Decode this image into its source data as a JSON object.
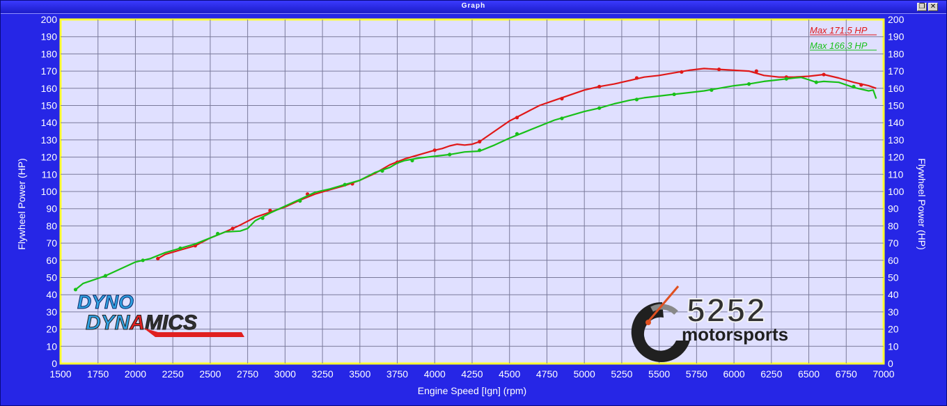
{
  "window": {
    "title": "Graph",
    "restore_glyph": "❐",
    "close_glyph": "✕"
  },
  "chart_data": {
    "type": "line",
    "xlabel": "Engine Speed [Ign] (rpm)",
    "ylabel": "Flywheel Power (HP)",
    "y2label": "Flywheel Power (HP)",
    "xlim": [
      1500,
      7000
    ],
    "ylim": [
      0,
      200
    ],
    "xticks": [
      1500,
      1750,
      2000,
      2250,
      2500,
      2750,
      3000,
      3250,
      3500,
      3750,
      4000,
      4250,
      4500,
      4750,
      5000,
      5250,
      5500,
      5750,
      6000,
      6250,
      6500,
      6750,
      7000
    ],
    "yticks": [
      0,
      10,
      20,
      30,
      40,
      50,
      60,
      70,
      80,
      90,
      100,
      110,
      120,
      130,
      140,
      150,
      160,
      170,
      180,
      190,
      200
    ],
    "grid": true,
    "legend_position": "top-right",
    "series": [
      {
        "name": "Max 171.5 HP",
        "color": "#e01818",
        "points": [
          [
            2150,
            61
          ],
          [
            2200,
            63.5
          ],
          [
            2300,
            66
          ],
          [
            2400,
            68.5
          ],
          [
            2500,
            73
          ],
          [
            2600,
            76.5
          ],
          [
            2700,
            80.5
          ],
          [
            2800,
            85
          ],
          [
            2900,
            88
          ],
          [
            3000,
            91
          ],
          [
            3100,
            95
          ],
          [
            3200,
            98.5
          ],
          [
            3300,
            101
          ],
          [
            3400,
            103.5
          ],
          [
            3500,
            106.5
          ],
          [
            3600,
            110.5
          ],
          [
            3700,
            115.5
          ],
          [
            3800,
            119
          ],
          [
            3900,
            121.5
          ],
          [
            4000,
            124
          ],
          [
            4050,
            125
          ],
          [
            4100,
            126.5
          ],
          [
            4150,
            127.5
          ],
          [
            4200,
            127
          ],
          [
            4250,
            127.5
          ],
          [
            4300,
            129
          ],
          [
            4400,
            135
          ],
          [
            4500,
            141
          ],
          [
            4600,
            145.5
          ],
          [
            4700,
            150
          ],
          [
            4800,
            153
          ],
          [
            4900,
            156
          ],
          [
            5000,
            159
          ],
          [
            5100,
            161
          ],
          [
            5200,
            162.5
          ],
          [
            5300,
            164.5
          ],
          [
            5400,
            166.5
          ],
          [
            5500,
            167.5
          ],
          [
            5600,
            169
          ],
          [
            5700,
            170.5
          ],
          [
            5800,
            171.5
          ],
          [
            5900,
            171
          ],
          [
            6000,
            170.5
          ],
          [
            6100,
            170
          ],
          [
            6200,
            167.5
          ],
          [
            6300,
            166.5
          ],
          [
            6400,
            166.5
          ],
          [
            6500,
            167
          ],
          [
            6600,
            168
          ],
          [
            6700,
            166
          ],
          [
            6800,
            163.5
          ],
          [
            6900,
            161.5
          ],
          [
            6950,
            160
          ]
        ],
        "markers": [
          [
            2150,
            61
          ],
          [
            2400,
            68.5
          ],
          [
            2650,
            78.5
          ],
          [
            2900,
            89
          ],
          [
            3150,
            98.5
          ],
          [
            3450,
            104.5
          ],
          [
            3750,
            117
          ],
          [
            4000,
            124
          ],
          [
            4300,
            129
          ],
          [
            4550,
            143
          ],
          [
            4850,
            154
          ],
          [
            5100,
            161
          ],
          [
            5350,
            166
          ],
          [
            5650,
            169.5
          ],
          [
            5900,
            171
          ],
          [
            6150,
            170
          ],
          [
            6350,
            166.5
          ],
          [
            6600,
            168
          ],
          [
            6850,
            162
          ]
        ]
      },
      {
        "name": "Max 166.3 HP",
        "color": "#18c018",
        "points": [
          [
            1600,
            43
          ],
          [
            1650,
            46.5
          ],
          [
            1700,
            48
          ],
          [
            1800,
            51
          ],
          [
            1900,
            55
          ],
          [
            2000,
            59
          ],
          [
            2100,
            61
          ],
          [
            2200,
            64.5
          ],
          [
            2300,
            67
          ],
          [
            2400,
            69.5
          ],
          [
            2500,
            73
          ],
          [
            2600,
            76.5
          ],
          [
            2700,
            77
          ],
          [
            2750,
            78.5
          ],
          [
            2800,
            83
          ],
          [
            2900,
            87.5
          ],
          [
            3000,
            91.5
          ],
          [
            3100,
            95.5
          ],
          [
            3200,
            99.5
          ],
          [
            3300,
            101.5
          ],
          [
            3400,
            104
          ],
          [
            3500,
            106.5
          ],
          [
            3600,
            111
          ],
          [
            3700,
            114
          ],
          [
            3750,
            116.5
          ],
          [
            3800,
            118
          ],
          [
            3900,
            119.5
          ],
          [
            4000,
            120.5
          ],
          [
            4100,
            121.5
          ],
          [
            4200,
            123
          ],
          [
            4300,
            123.5
          ],
          [
            4400,
            127
          ],
          [
            4500,
            131
          ],
          [
            4600,
            134.5
          ],
          [
            4700,
            138
          ],
          [
            4800,
            141.5
          ],
          [
            4900,
            144
          ],
          [
            5000,
            146.5
          ],
          [
            5100,
            148.5
          ],
          [
            5200,
            151
          ],
          [
            5300,
            153
          ],
          [
            5400,
            154.5
          ],
          [
            5500,
            155.5
          ],
          [
            5600,
            156.5
          ],
          [
            5700,
            157.5
          ],
          [
            5800,
            158.5
          ],
          [
            5900,
            160
          ],
          [
            6000,
            161.5
          ],
          [
            6100,
            162.5
          ],
          [
            6200,
            164
          ],
          [
            6300,
            165
          ],
          [
            6400,
            166
          ],
          [
            6450,
            166.3
          ],
          [
            6500,
            165
          ],
          [
            6550,
            163.5
          ],
          [
            6600,
            164
          ],
          [
            6700,
            163.5
          ],
          [
            6800,
            160.5
          ],
          [
            6900,
            158.5
          ],
          [
            6930,
            159
          ],
          [
            6950,
            154
          ]
        ],
        "markers": [
          [
            1600,
            43
          ],
          [
            1800,
            51
          ],
          [
            2050,
            60
          ],
          [
            2300,
            67
          ],
          [
            2550,
            75.5
          ],
          [
            2850,
            84.5
          ],
          [
            3100,
            94.5
          ],
          [
            3400,
            104
          ],
          [
            3650,
            112
          ],
          [
            3850,
            118
          ],
          [
            4100,
            121.5
          ],
          [
            4300,
            124
          ],
          [
            4550,
            133.5
          ],
          [
            4850,
            142.5
          ],
          [
            5100,
            148.5
          ],
          [
            5350,
            153.5
          ],
          [
            5600,
            156.5
          ],
          [
            5850,
            159
          ],
          [
            6100,
            162.5
          ],
          [
            6350,
            165.5
          ],
          [
            6550,
            163.5
          ],
          [
            6800,
            161
          ]
        ]
      }
    ]
  },
  "logos": {
    "dyno": {
      "line1": "DYNO",
      "line2a": "DYN",
      "line2b": "A",
      "line2c": "MICS"
    },
    "motorsports": {
      "number": "5252",
      "word": "motorsports"
    }
  }
}
